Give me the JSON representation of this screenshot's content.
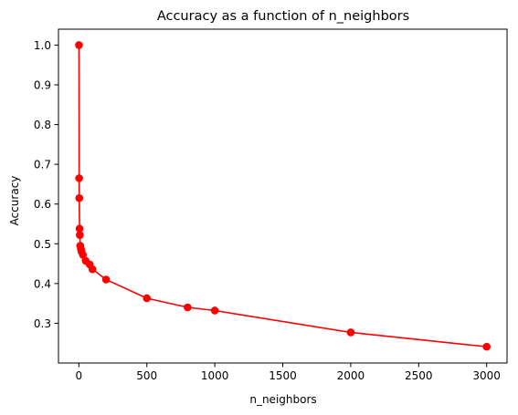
{
  "chart_data": {
    "type": "line",
    "title": "Accuracy as a function of n_neighbors",
    "xlabel": "n_neighbors",
    "ylabel": "Accuracy",
    "xlim": [
      -150,
      3150
    ],
    "ylim": [
      0.2,
      1.04
    ],
    "x_ticks": [
      0,
      500,
      1000,
      1500,
      2000,
      2500,
      3000
    ],
    "y_ticks": [
      0.3,
      0.4,
      0.5,
      0.6,
      0.7,
      0.8,
      0.9,
      1.0
    ],
    "x_tick_labels": [
      "0",
      "500",
      "1000",
      "1500",
      "2000",
      "2500",
      "3000"
    ],
    "y_tick_labels": [
      "0.3",
      "0.4",
      "0.5",
      "0.6",
      "0.7",
      "0.8",
      "0.9",
      "1.0"
    ],
    "grid": false,
    "series": [
      {
        "color": "#ff0000",
        "marker": "circle",
        "x": [
          1,
          2,
          3,
          5,
          7,
          10,
          15,
          20,
          30,
          50,
          80,
          100,
          200,
          500,
          800,
          1000,
          2000,
          3000
        ],
        "y": [
          1.0,
          0.665,
          0.615,
          0.538,
          0.522,
          0.495,
          0.487,
          0.48,
          0.472,
          0.457,
          0.448,
          0.436,
          0.41,
          0.363,
          0.34,
          0.332,
          0.277,
          0.241
        ]
      }
    ]
  }
}
